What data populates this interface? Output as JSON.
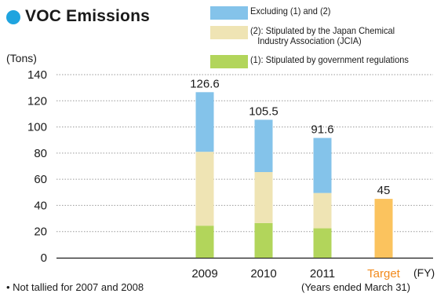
{
  "title": "VOC Emissions",
  "unit_label": "(Tons)",
  "fy_label": "(FY)",
  "note_left": "• Not tallied for 2007 and 2008",
  "note_right": "(Years ended March 31)",
  "legend": [
    {
      "label_lines": [
        "Excluding (1) and (2)"
      ],
      "color": "#84c3ea"
    },
    {
      "label_lines": [
        "(2): Stipulated by the Japan Chemical",
        "Industry Association (JCIA)"
      ],
      "color": "#efe4b4"
    },
    {
      "label_lines": [
        "(1): Stipulated by government regulations"
      ],
      "color": "#b2d55b"
    }
  ],
  "chart_data": {
    "type": "bar",
    "stacked": true,
    "categories": [
      "2009",
      "2010",
      "2011",
      "Target"
    ],
    "category_colors": {
      "Target": "#f28a1b"
    },
    "series": [
      {
        "name": "(1): Stipulated by government regulations",
        "color": "#b2d55b",
        "values": [
          24.5,
          26.5,
          22.5,
          null
        ]
      },
      {
        "name": "(2): Stipulated by the Japan Chemical Industry Association (JCIA)",
        "color": "#efe4b4",
        "values": [
          56.5,
          39,
          27,
          null
        ]
      },
      {
        "name": "Excluding (1) and (2)",
        "color": "#84c3ea",
        "values": [
          45.6,
          40,
          42.1,
          null
        ]
      },
      {
        "color": "#fbc35e",
        "values": [
          null,
          null,
          null,
          45
        ]
      }
    ],
    "totals": [
      "126.6",
      "105.5",
      "91.6",
      "45"
    ],
    "ylim": [
      0,
      140
    ],
    "yticks": [
      0,
      20,
      40,
      60,
      80,
      100,
      120,
      140
    ],
    "grid": "dotted horizontal"
  }
}
